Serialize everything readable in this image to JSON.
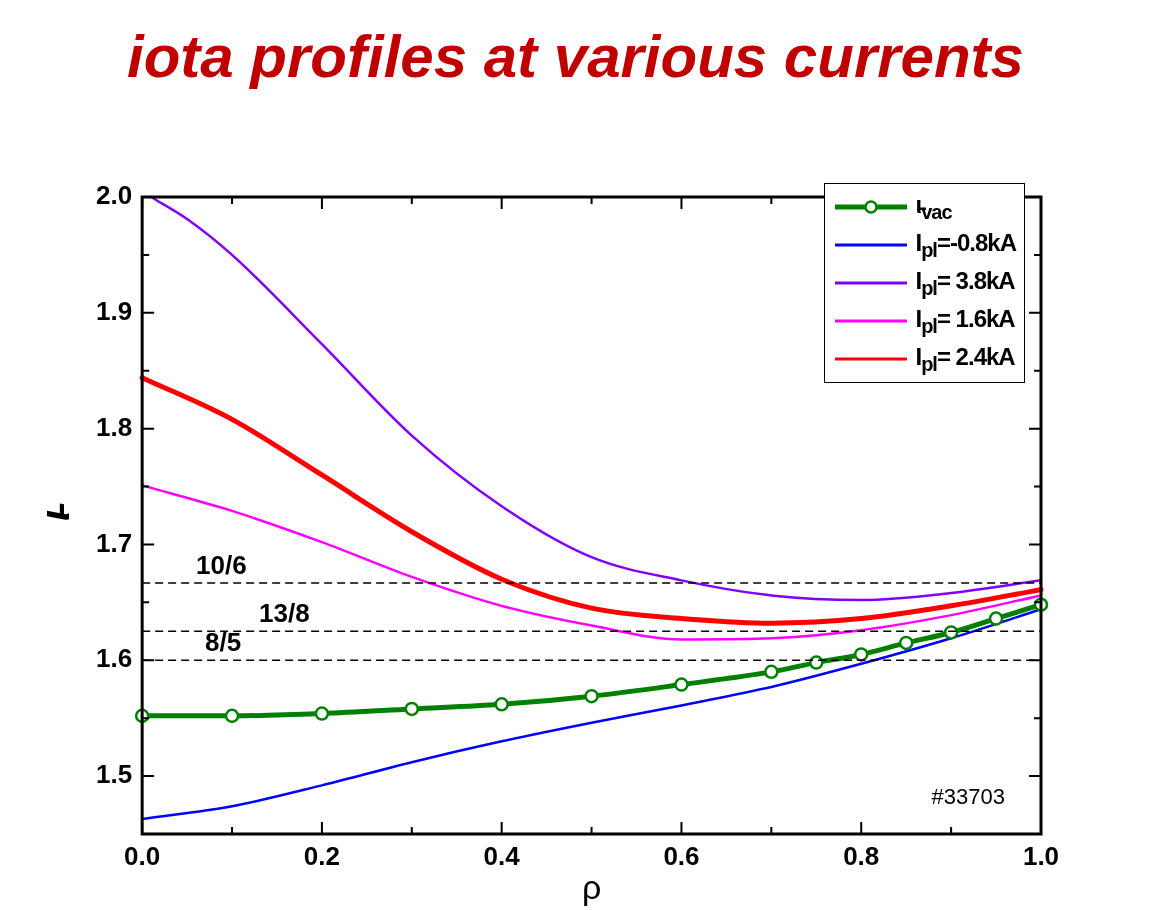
{
  "chart_data": {
    "type": "line",
    "title": "iota profiles at various currents",
    "xlabel": "ρ",
    "ylabel": "ι̵",
    "xlim": [
      0,
      1
    ],
    "ylim": [
      1.45,
      2.0
    ],
    "xticks": [
      {
        "value": 0,
        "label": "0.0"
      },
      {
        "value": 0.1,
        "label": null
      },
      0.2,
      {
        "value": 0.3,
        "label": null
      },
      0.4,
      {
        "value": 0.5,
        "label": null
      },
      0.6,
      {
        "value": 0.7,
        "label": null
      },
      0.8,
      {
        "value": 0.9,
        "label": null
      },
      {
        "value": 1,
        "label": "1.0"
      }
    ],
    "yticks": [
      1.5,
      {
        "value": 1.55,
        "label": null
      },
      1.6,
      {
        "value": 1.65,
        "label": null
      },
      1.7,
      {
        "value": 1.75,
        "label": null
      },
      1.8,
      {
        "value": 1.85,
        "label": null
      },
      1.9,
      {
        "value": 1.95,
        "label": null
      },
      {
        "value": 2,
        "label": "2.0"
      }
    ],
    "grid": false,
    "legend": "top right",
    "line_style": "solid",
    "series": [
      {
        "name": "ι̵$_{vac}$",
        "color": "#008000",
        "marker": "circle",
        "x": [
          0,
          0.1,
          0.2,
          0.3,
          0.4,
          0.5,
          0.6,
          0.7,
          0.75,
          0.8,
          0.85,
          0.9,
          0.95,
          1.0
        ],
        "values": [
          1.552,
          1.552,
          1.554,
          1.558,
          1.562,
          1.569,
          1.579,
          1.59,
          1.598,
          1.605,
          1.615,
          1.624,
          1.636,
          1.648
        ]
      },
      {
        "name": "I$_{pl}$=-0.8kA",
        "color": "#0000ff",
        "marker": "none",
        "x": [
          0,
          0.1,
          0.2,
          0.3,
          0.4,
          0.5,
          0.6,
          0.7,
          0.8,
          0.9,
          1.0
        ],
        "values": [
          1.463,
          1.474,
          1.492,
          1.512,
          1.53,
          1.546,
          1.561,
          1.577,
          1.597,
          1.619,
          1.644
        ]
      },
      {
        "name": "I$_{pl}$= 3.8kA",
        "color": "#8000ff",
        "marker": "none",
        "x": [
          0.01,
          0.05,
          0.1,
          0.2,
          0.3,
          0.4,
          0.5,
          0.6,
          0.7,
          0.8,
          0.9,
          1.0
        ],
        "values": [
          2.0,
          1.981,
          1.95,
          1.873,
          1.794,
          1.733,
          1.689,
          1.669,
          1.656,
          1.652,
          1.658,
          1.669
        ]
      },
      {
        "name": "I$_{pl}$= 1.6kA",
        "color": "#ff00ff",
        "marker": "none",
        "x": [
          0,
          0.1,
          0.2,
          0.3,
          0.4,
          0.5,
          0.6,
          0.7,
          0.8,
          0.9,
          1.0
        ],
        "values": [
          1.751,
          1.729,
          1.702,
          1.672,
          1.647,
          1.63,
          1.618,
          1.619,
          1.626,
          1.639,
          1.656
        ]
      },
      {
        "name": "I$_{pl}$= 2.4kA",
        "color": "#ff0000",
        "marker": "none",
        "x": [
          0,
          0.1,
          0.2,
          0.3,
          0.4,
          0.5,
          0.6,
          0.7,
          0.8,
          0.9,
          1.0
        ],
        "values": [
          1.844,
          1.808,
          1.76,
          1.711,
          1.67,
          1.645,
          1.636,
          1.632,
          1.636,
          1.647,
          1.661
        ]
      }
    ],
    "ref_lines": [
      {
        "axis": "y",
        "value": 1.6667,
        "color": "#000000",
        "line_style": "dashed"
      },
      {
        "axis": "y",
        "value": 1.625,
        "color": "#000000",
        "line_style": "dashed"
      },
      {
        "axis": "y",
        "value": 1.6,
        "color": "#000000",
        "line_style": "dashed"
      }
    ],
    "annotations": [
      {
        "text": "10/6",
        "x": 0.06,
        "y": 1.6667
      },
      {
        "text": "13/8",
        "x": 0.13,
        "y": 1.625
      },
      {
        "text": "8/5",
        "x": 0.07,
        "y": 1.6
      },
      "#33703"
    ]
  }
}
